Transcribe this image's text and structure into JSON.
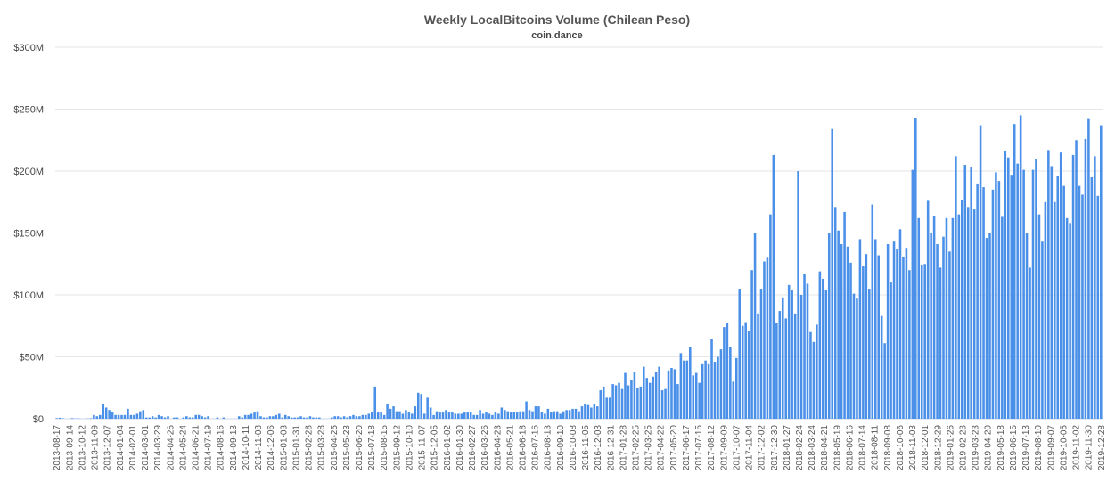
{
  "chart_data": {
    "type": "bar",
    "title": "Weekly LocalBitcoins Volume (Chilean Peso)",
    "subtitle": "coin.dance",
    "xlabel": "",
    "ylabel": "",
    "ylim": [
      0,
      300000000
    ],
    "y_ticks": [
      "$0",
      "$50M",
      "$100M",
      "$150M",
      "$200M",
      "$250M",
      "$300M"
    ],
    "grid": true,
    "color": "#4a90e8",
    "x_tick_labels": [
      "2013-08-17",
      "2013-09-14",
      "2013-10-12",
      "2013-11-09",
      "2013-12-07",
      "2014-01-04",
      "2014-02-01",
      "2014-03-01",
      "2014-03-29",
      "2014-04-26",
      "2014-05-24",
      "2014-06-21",
      "2014-07-19",
      "2014-08-16",
      "2014-09-13",
      "2014-10-11",
      "2014-11-08",
      "2014-12-06",
      "2015-01-03",
      "2015-01-31",
      "2015-02-28",
      "2015-03-28",
      "2015-04-25",
      "2015-05-23",
      "2015-06-20",
      "2015-07-18",
      "2015-08-15",
      "2015-09-12",
      "2015-10-10",
      "2015-11-07",
      "2015-12-05",
      "2016-01-02",
      "2016-01-30",
      "2016-02-27",
      "2016-03-26",
      "2016-04-23",
      "2016-05-21",
      "2016-06-18",
      "2016-07-16",
      "2016-08-13",
      "2016-09-10",
      "2016-10-08",
      "2016-11-05",
      "2016-12-03",
      "2016-12-31",
      "2017-01-28",
      "2017-02-25",
      "2017-03-25",
      "2017-04-22",
      "2017-05-20",
      "2017-06-17",
      "2017-07-15",
      "2017-08-12",
      "2017-09-09",
      "2017-10-07",
      "2017-11-04",
      "2017-12-02",
      "2017-12-30",
      "2018-01-27",
      "2018-02-24",
      "2018-03-24",
      "2018-04-21",
      "2018-05-19",
      "2018-06-16",
      "2018-07-14",
      "2018-08-11",
      "2018-09-08",
      "2018-10-06",
      "2018-11-03",
      "2018-12-01",
      "2018-12-29",
      "2019-01-26",
      "2019-02-23",
      "2019-03-23",
      "2019-04-20",
      "2019-05-18",
      "2019-06-15",
      "2019-07-13",
      "2019-08-10",
      "2019-09-07",
      "2019-10-05",
      "2019-11-02",
      "2019-11-30",
      "2019-12-28"
    ],
    "values_millions": [
      0.5,
      0.8,
      0.3,
      0,
      0,
      0.5,
      0.2,
      0.3,
      0,
      0,
      0.2,
      0.4,
      3,
      2,
      3,
      12,
      9,
      7,
      5,
      3,
      3,
      3,
      3,
      8,
      3,
      3,
      4,
      6,
      7,
      1,
      1,
      2,
      1,
      3,
      2,
      1,
      2,
      0,
      1,
      1,
      0,
      1,
      2,
      1,
      1,
      3,
      3,
      2,
      1,
      2,
      0,
      0,
      1,
      0,
      1,
      0,
      0,
      0,
      0,
      2,
      1,
      3,
      3,
      4,
      5,
      6,
      2,
      1,
      1,
      2,
      2,
      3,
      4,
      1,
      3,
      2,
      1,
      1,
      1,
      2,
      1,
      1,
      2,
      1,
      1,
      1,
      0,
      0,
      0,
      1,
      2,
      2,
      1,
      2,
      1,
      2,
      3,
      2,
      2,
      3,
      3,
      4,
      5,
      26,
      5,
      5,
      3,
      12,
      8,
      10,
      6,
      6,
      4,
      7,
      5,
      4,
      10,
      21,
      20,
      4,
      17,
      9,
      3,
      6,
      5,
      5,
      7,
      5,
      5,
      4,
      4,
      4,
      5,
      5,
      5,
      3,
      3,
      7,
      4,
      5,
      4,
      3,
      5,
      4,
      9,
      7,
      6,
      5,
      5,
      5,
      6,
      6,
      14,
      7,
      6,
      10,
      10,
      5,
      4,
      8,
      5,
      6,
      6,
      4,
      6,
      7,
      7,
      8,
      8,
      6,
      10,
      12,
      11,
      9,
      12,
      10,
      23,
      26,
      17,
      17,
      28,
      27,
      29,
      24,
      37,
      27,
      31,
      38,
      25,
      26,
      42,
      33,
      29,
      34,
      38,
      42,
      23,
      24,
      39,
      41,
      40,
      28,
      53,
      47,
      47,
      58,
      35,
      37,
      29,
      44,
      47,
      44,
      64,
      46,
      50,
      56,
      74,
      77,
      58,
      30,
      49,
      105,
      75,
      78,
      71,
      120,
      150,
      85,
      105,
      127,
      130,
      165,
      213,
      77,
      87,
      98,
      81,
      108,
      104,
      85,
      200,
      100,
      117,
      109,
      70,
      62,
      76,
      119,
      113,
      104,
      150,
      234,
      171,
      152,
      141,
      167,
      139,
      126,
      101,
      97,
      145,
      123,
      133,
      105,
      173,
      145,
      132,
      83,
      61,
      141,
      110,
      143,
      137,
      153,
      131,
      138,
      120,
      201,
      243,
      162,
      124,
      125,
      176,
      150,
      164,
      141,
      122,
      147,
      162,
      135,
      162,
      212,
      165,
      177,
      205,
      171,
      203,
      169,
      190,
      237,
      187,
      146,
      150,
      185,
      199,
      192,
      163,
      216,
      211,
      197,
      238,
      206,
      245,
      201,
      150,
      122,
      201,
      210,
      165,
      143,
      175,
      217,
      204,
      175,
      196,
      215,
      188,
      162,
      158,
      213,
      225,
      188,
      181,
      226,
      242,
      195,
      212,
      180,
      237
    ]
  }
}
